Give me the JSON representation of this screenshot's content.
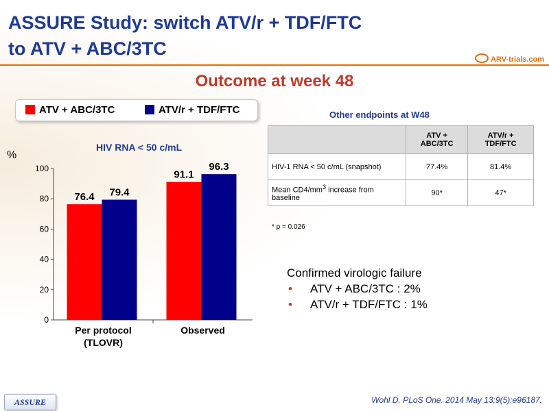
{
  "slide": {
    "title_line1": "ASSURE Study: switch ATV/r + TDF/FTC",
    "title_line2": "to ATV + ABC/3TC",
    "logo_text": "ARV-trials.com",
    "subtitle": "Outcome at week 48",
    "badge": "ASSURE",
    "reference": "Wohl D. PLoS One. 2014 May 13;9(5):e96187."
  },
  "legend": [
    {
      "label": "ATV + ABC/3TC",
      "color": "#ff0000"
    },
    {
      "label": "ATV/r + TDF/FTC",
      "color": "#00008b"
    }
  ],
  "chart_data": {
    "type": "bar",
    "title": "HIV RNA < 50 c/mL",
    "ylabel": "%",
    "ylim": [
      0,
      100
    ],
    "yticks": [
      0,
      20,
      40,
      60,
      80,
      100
    ],
    "categories": [
      "Per protocol\n(TLOVR)",
      "Observed"
    ],
    "series": [
      {
        "name": "ATV + ABC/3TC",
        "color": "#ff0000",
        "values": [
          76.4,
          91.1
        ]
      },
      {
        "name": "ATV/r + TDF/FTC",
        "color": "#00008b",
        "values": [
          79.4,
          96.3
        ]
      }
    ]
  },
  "other_endpoints": {
    "title": "Other endpoints at W48",
    "headers": [
      "",
      "ATV + ABC/3TC",
      "ATV/r + TDF/FTC"
    ],
    "rows": [
      {
        "label": "HIV-1 RNA < 50 c/mL (snapshot)",
        "v1": "77.4%",
        "v2": "81.4%"
      },
      {
        "label_pre": "Mean CD4/mm",
        "label_sup": "3",
        "label_post": " increase from baseline",
        "v1": "90*",
        "v2": "47*"
      }
    ],
    "note": "* p = 0.026"
  },
  "virologic_failure": {
    "title": "Confirmed virologic failure",
    "items": [
      {
        "bullet": "•",
        "text": "ATV  + ABC/3TC : 2%"
      },
      {
        "bullet": "•",
        "text": "ATV/r  + TDF/FTC : 1%"
      }
    ]
  }
}
